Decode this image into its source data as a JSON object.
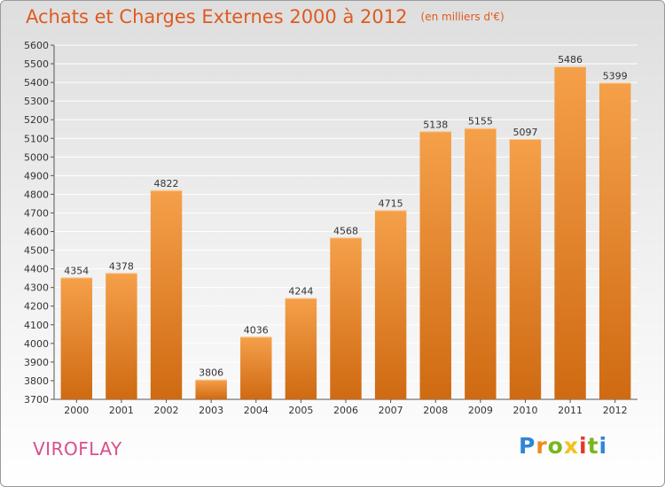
{
  "title": {
    "main": "Achats et Charges Externes 2000 à 2012",
    "unit": "(en milliers d'€)"
  },
  "city": "VIROFLAY",
  "logo": {
    "letters": [
      "P",
      "r",
      "o",
      "x",
      "i",
      "t",
      "i"
    ]
  },
  "colors": {
    "title": "#e05a1e",
    "city": "#d94f8a",
    "bar_top": "#f5a04a",
    "bar_bottom": "#cf6a12",
    "grid": "#ffffff",
    "background_top": "#dedede"
  },
  "chart_data": {
    "type": "bar",
    "title": "Achats et Charges Externes 2000 à 2012",
    "subtitle": "(en milliers d'€)",
    "categories": [
      "2000",
      "2001",
      "2002",
      "2003",
      "2004",
      "2005",
      "2006",
      "2007",
      "2008",
      "2009",
      "2010",
      "2011",
      "2012"
    ],
    "values": [
      4354,
      4378,
      4822,
      3806,
      4036,
      4244,
      4568,
      4715,
      5138,
      5155,
      5097,
      5486,
      5399
    ],
    "ylim": [
      3700,
      5600
    ],
    "yticks": [
      3700,
      3800,
      3900,
      4000,
      4100,
      4200,
      4300,
      4400,
      4500,
      4600,
      4700,
      4800,
      4900,
      5000,
      5100,
      5200,
      5300,
      5400,
      5500,
      5600
    ],
    "grid": true,
    "data_labels": true
  }
}
